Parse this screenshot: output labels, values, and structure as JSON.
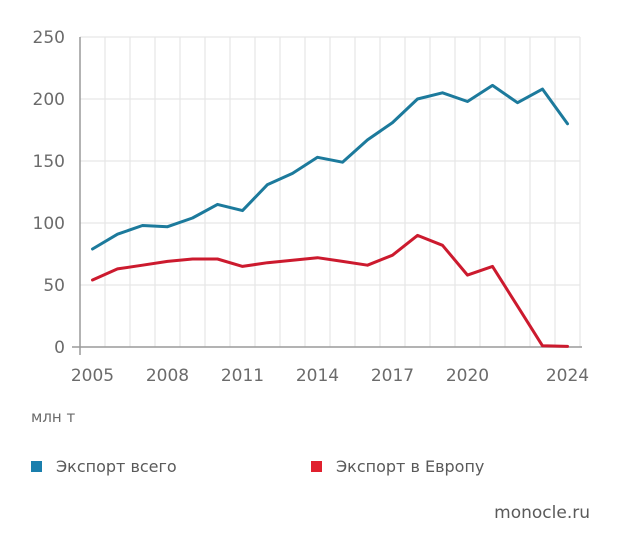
{
  "chart_data": {
    "type": "line",
    "title": "",
    "xlabel": "",
    "ylabel": "млн т",
    "x": [
      2005,
      2006,
      2007,
      2008,
      2009,
      2010,
      2011,
      2012,
      2013,
      2014,
      2015,
      2016,
      2017,
      2018,
      2019,
      2020,
      2021,
      2022,
      2023,
      2024
    ],
    "x_tick_labels": [
      "2005",
      "2008",
      "2011",
      "2014",
      "2017",
      "2020",
      "2024"
    ],
    "y_tick_labels": [
      "0",
      "50",
      "100",
      "150",
      "200",
      "250"
    ],
    "y_ticks": [
      0,
      50,
      100,
      150,
      200,
      250
    ],
    "ylim": [
      0,
      250
    ],
    "grid": true,
    "legend_position": "bottom",
    "series": [
      {
        "name": "Экспорт всего",
        "color": "#1c7a9c",
        "legend_color": "#1a7fad",
        "values": [
          79,
          91,
          98,
          97,
          104,
          115,
          110,
          131,
          140,
          153,
          149,
          167,
          181,
          200,
          205,
          198,
          211,
          197,
          208,
          180
        ]
      },
      {
        "name": "Экспорт в Европу",
        "color": "#cc1a2e",
        "legend_color": "#e0202e",
        "values": [
          54,
          63,
          66,
          69,
          71,
          71,
          65,
          68,
          70,
          72,
          69,
          66,
          74,
          90,
          82,
          58,
          65,
          33,
          1,
          0.5
        ]
      }
    ]
  },
  "unit_label": "млн т",
  "legend": [
    {
      "label": "Экспорт всего",
      "color": "#1a7fad"
    },
    {
      "label": "Экспорт в Европу",
      "color": "#e0202e"
    }
  ],
  "source": "monocle.ru"
}
